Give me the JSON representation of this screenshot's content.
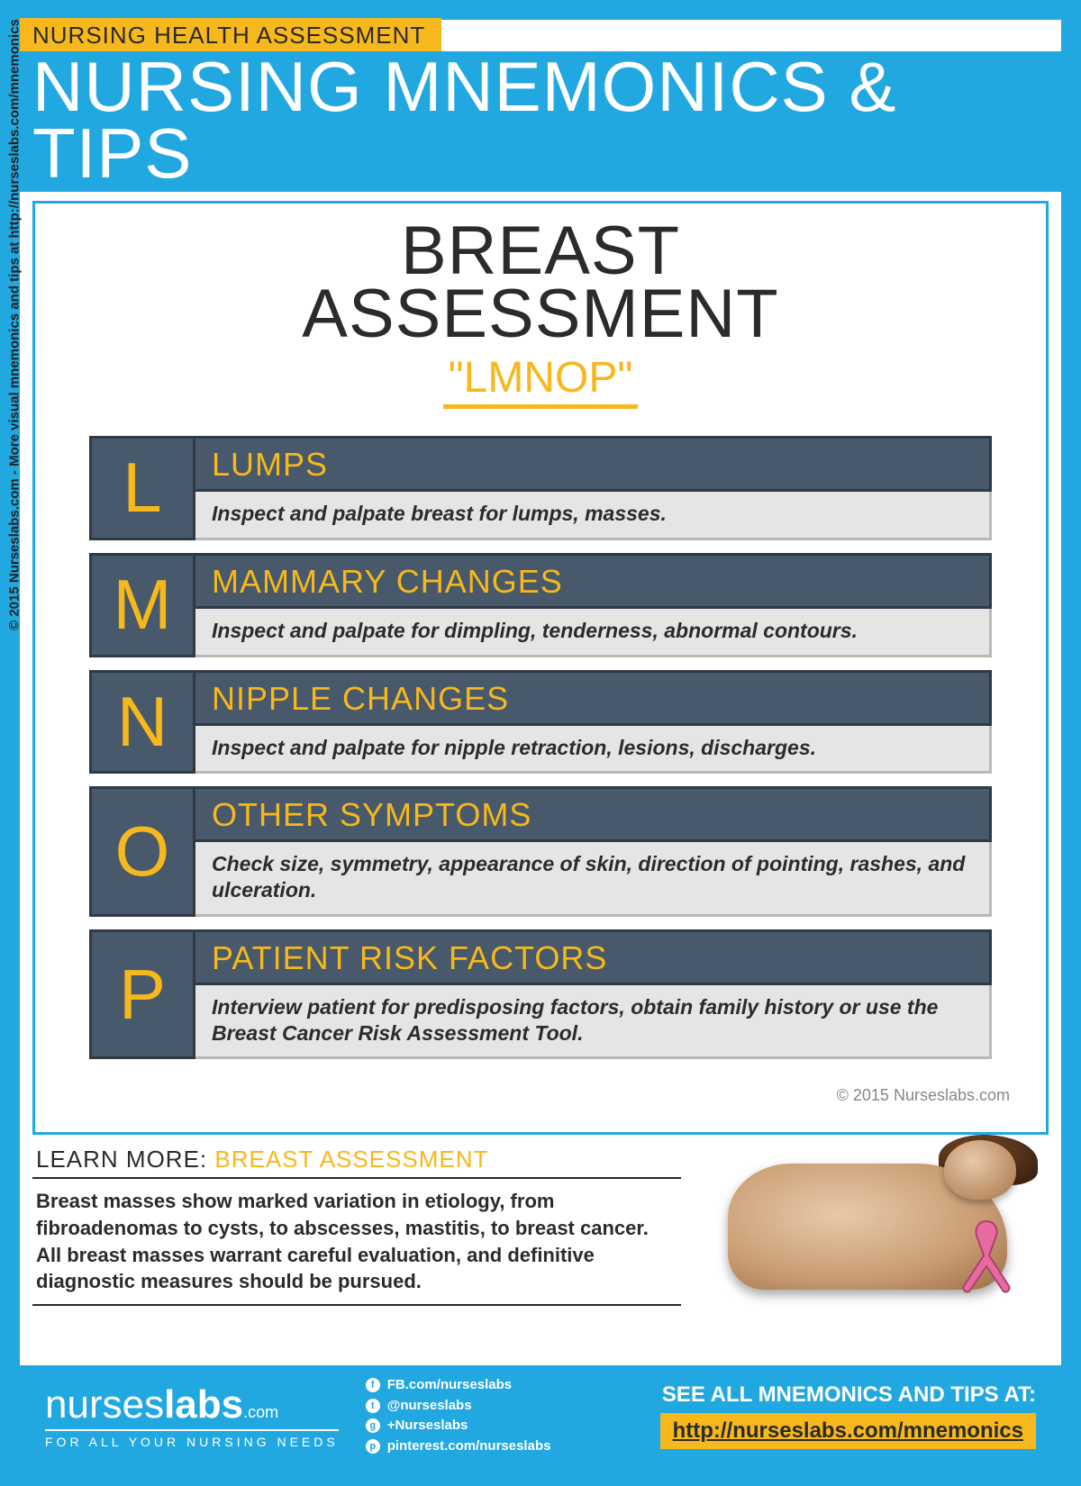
{
  "colors": {
    "frame": "#22a8e0",
    "accent": "#f6b81c",
    "dark_text": "#2b2b2b",
    "box_bg": "#47596a",
    "box_border": "#2e3a46",
    "desc_bg": "#e5e5e5",
    "desc_border": "#b9b9b9",
    "ribbon": "#e76aa0"
  },
  "sidebar": "© 2015 Nurseslabs.com - More visual mnemonics and tips at http://nurseslabs.com/mnemonics",
  "top_label": "NURSING HEALTH ASSESSMENT",
  "main_title": "NURSING MNEMONICS & TIPS",
  "subject_line1": "BREAST",
  "subject_line2": "ASSESSMENT",
  "mnemonic": "\"LMNOP\"",
  "rows": [
    {
      "letter": "L",
      "heading": "LUMPS",
      "desc": "Inspect and palpate breast for lumps, masses."
    },
    {
      "letter": "M",
      "heading": "MAMMARY CHANGES",
      "desc": "Inspect and palpate for dimpling, tenderness, abnormal contours."
    },
    {
      "letter": "N",
      "heading": "NIPPLE CHANGES",
      "desc": "Inspect and palpate for nipple retraction, lesions, discharges."
    },
    {
      "letter": "O",
      "heading": "OTHER SYMPTOMS",
      "desc": "Check size, symmetry, appearance of skin, direction of pointing, rashes, and ulceration."
    },
    {
      "letter": "P",
      "heading": "PATIENT RISK FACTORS",
      "desc": "Interview patient for predisposing factors, obtain family history or use the Breast Cancer Risk Assessment Tool."
    }
  ],
  "copyright_inner": "© 2015 Nurseslabs.com",
  "learn_more": {
    "prefix": "LEARN MORE: ",
    "topic": "BREAST ASSESSMENT",
    "body": "Breast masses show marked variation in etiology, from fibroadenomas to cysts, to abscesses, mastitis, to breast cancer. All breast masses warrant careful evaluation, and definitive diagnostic measures should be pursued."
  },
  "footer": {
    "logo_light": "nurses",
    "logo_bold": "labs",
    "logo_suffix": ".com",
    "tagline": "FOR ALL YOUR NURSING NEEDS",
    "social": [
      {
        "icon": "f",
        "text": "FB.com/nurseslabs"
      },
      {
        "icon": "t",
        "text": "@nurseslabs"
      },
      {
        "icon": "g",
        "text": "+Nurseslabs"
      },
      {
        "icon": "p",
        "text": "pinterest.com/nurseslabs"
      }
    ],
    "see_all_label": "SEE ALL MNEMONICS AND TIPS AT:",
    "see_all_link": "http://nurseslabs.com/mnemonics"
  }
}
